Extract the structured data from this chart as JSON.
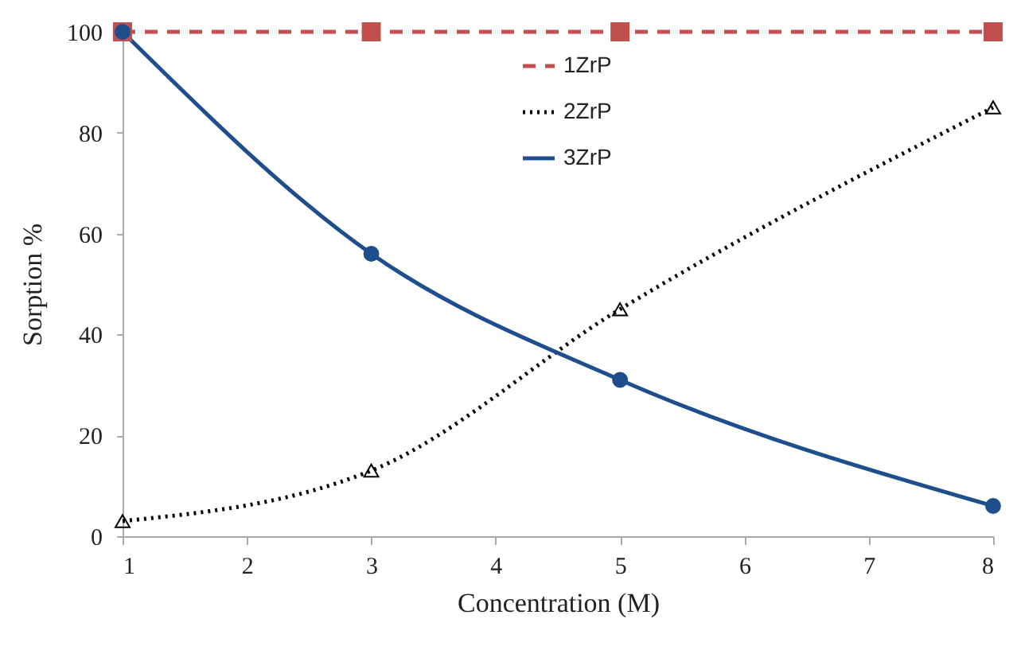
{
  "chart_data": {
    "type": "line",
    "xlabel": "Concentration (M)",
    "ylabel": "Sorption %",
    "x": [
      1,
      3,
      5,
      8
    ],
    "series": [
      {
        "name": "1ZrP",
        "color": "#c0504d",
        "marker": "square",
        "line_style": "dashed",
        "values": [
          100,
          100,
          100,
          100
        ]
      },
      {
        "name": "2ZrP",
        "color": "#000000",
        "marker": "triangle",
        "line_style": "dotted",
        "values": [
          3,
          13,
          45,
          85
        ]
      },
      {
        "name": "3ZrP",
        "color": "#1f4e8c",
        "marker": "circle",
        "line_style": "solid",
        "values": [
          100,
          56,
          31,
          6
        ]
      }
    ],
    "xlim": [
      1,
      8
    ],
    "xticks": [
      1,
      2,
      3,
      4,
      5,
      6,
      7,
      8
    ],
    "ylim": [
      0,
      100
    ],
    "yticks": [
      0,
      20,
      40,
      60,
      80,
      100
    ],
    "grid": false,
    "legend": "top"
  }
}
